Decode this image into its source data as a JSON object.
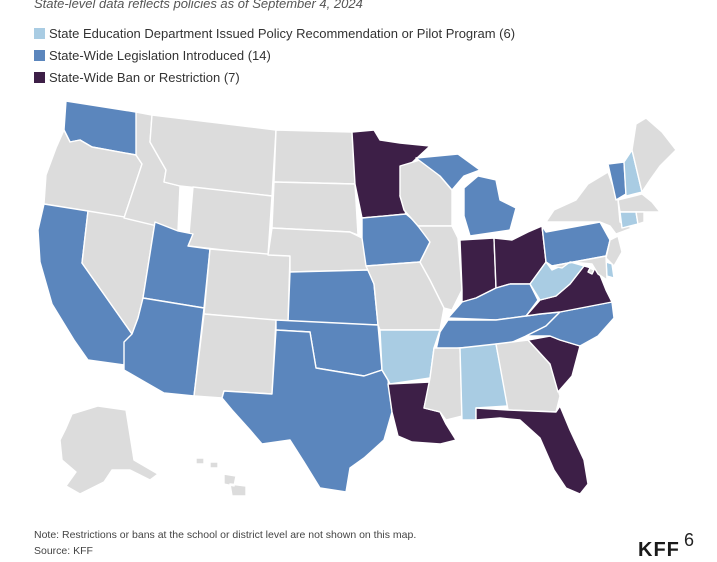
{
  "subtitle": "State-level data reflects policies as of September 4, 2024",
  "legend": [
    {
      "key": "recommendation",
      "label": "State Education Department Issued Policy Recommendation or Pilot Program (6)",
      "color": "#a9cce3"
    },
    {
      "key": "legislation",
      "label": "State-Wide Legislation Introduced (14)",
      "color": "#5b86bd"
    },
    {
      "key": "ban",
      "label": "State-Wide Ban or Restriction (7)",
      "color": "#3d1f47"
    }
  ],
  "colors": {
    "none": "#dcdcdc",
    "recommendation": "#a9cce3",
    "legislation": "#5b86bd",
    "ban": "#3d1f47"
  },
  "states": {
    "WA": "legislation",
    "OR": "none",
    "CA": "legislation",
    "NV": "none",
    "ID": "none",
    "MT": "none",
    "WY": "none",
    "UT": "legislation",
    "AZ": "legislation",
    "CO": "none",
    "NM": "none",
    "ND": "none",
    "SD": "none",
    "NE": "none",
    "KS": "legislation",
    "OK": "legislation",
    "TX": "legislation",
    "MN": "ban",
    "IA": "legislation",
    "MO": "none",
    "AR": "recommendation",
    "LA": "ban",
    "WI": "none",
    "IL": "none",
    "MI": "legislation",
    "IN": "ban",
    "OH": "ban",
    "KY": "legislation",
    "TN": "legislation",
    "MS": "none",
    "AL": "recommendation",
    "GA": "none",
    "FL": "ban",
    "SC": "ban",
    "NC": "legislation",
    "VA": "ban",
    "WV": "recommendation",
    "PA": "legislation",
    "NY": "none",
    "VT": "legislation",
    "NH": "recommendation",
    "ME": "none",
    "MA": "none",
    "CT": "recommendation",
    "RI": "none",
    "NJ": "none",
    "DE": "recommendation",
    "MD": "none",
    "DC": "none",
    "AK": "none",
    "HI": "none"
  },
  "note": "Note: Restrictions or bans at the school or district level are not shown on this map.",
  "source": "Source: KFF",
  "logo": "KFF",
  "page_number": "6"
}
